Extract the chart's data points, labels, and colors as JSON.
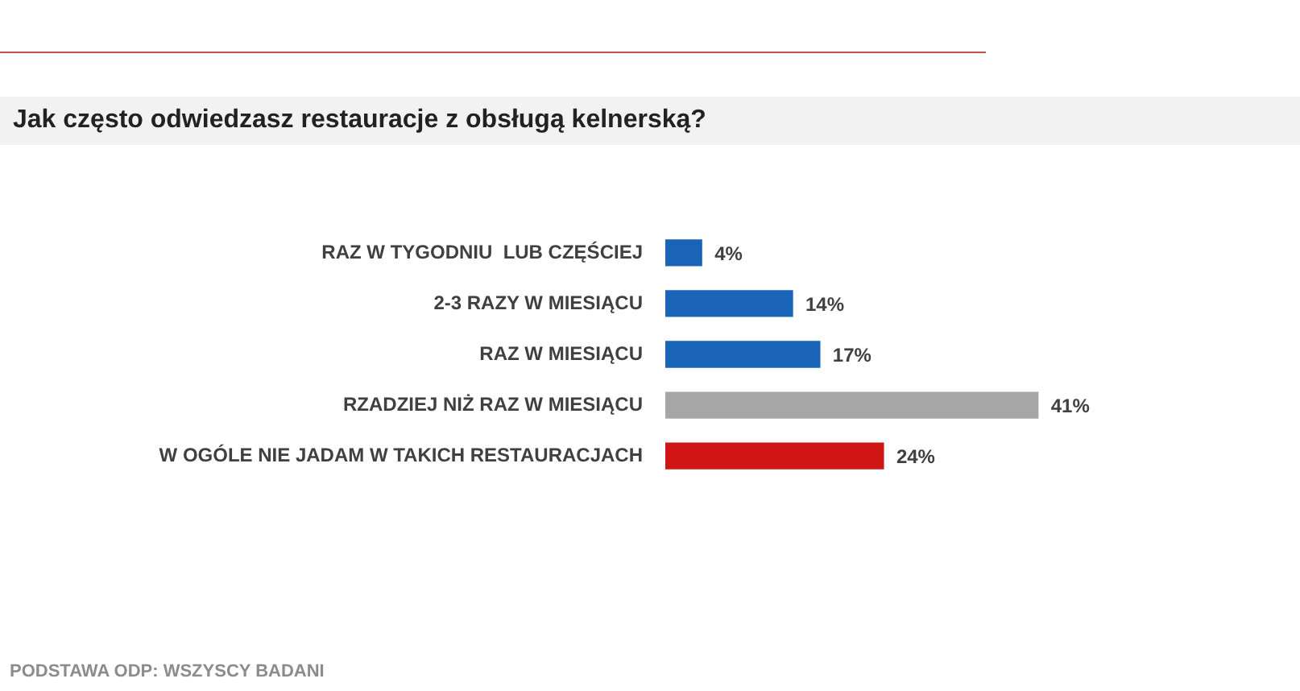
{
  "chart_data": {
    "type": "bar",
    "orientation": "horizontal",
    "title": "Jak często odwiedzasz restauracje z obsługą kelnerską?",
    "categories": [
      "RAZ W TYGODNIU  LUB CZĘŚCIEJ",
      "2-3 RAZY W MIESIĄCU",
      "RAZ W MIESIĄCU",
      "RZADZIEJ NIŻ RAZ W MIESIĄCU",
      "W OGÓLE NIE JADAM W TAKICH RESTAURACJACH"
    ],
    "values": [
      4,
      14,
      17,
      41,
      24
    ],
    "colors": [
      "#1a64b8",
      "#1a64b8",
      "#1a64b8",
      "#a6a6a6",
      "#d01515"
    ],
    "value_labels": [
      "4%",
      "14%",
      "17%",
      "41%",
      "24%"
    ],
    "grid": false,
    "legend": false,
    "annotations": [
      "PODSTAWA ODP: WSZYSCY BADANI"
    ]
  }
}
